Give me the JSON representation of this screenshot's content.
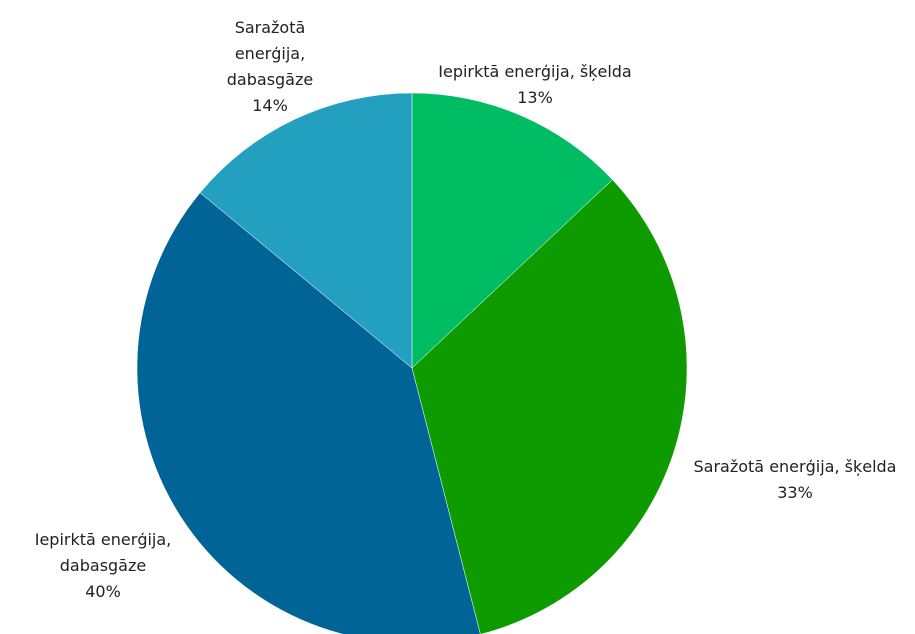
{
  "chart_data": {
    "type": "pie",
    "categories": [
      "Iepirktā enerģija, šķelda",
      "Saražotā enerģija, šķelda",
      "Iepirktā enerģija, dabasgāze",
      "Saražotā enerģija, dabasgāze"
    ],
    "values": [
      13,
      33,
      40,
      14
    ],
    "value_labels": [
      "13%",
      "33%",
      "40%",
      "14%"
    ],
    "colors": [
      "#00bd63",
      "#0e9b00",
      "#006497",
      "#239fbf"
    ]
  }
}
